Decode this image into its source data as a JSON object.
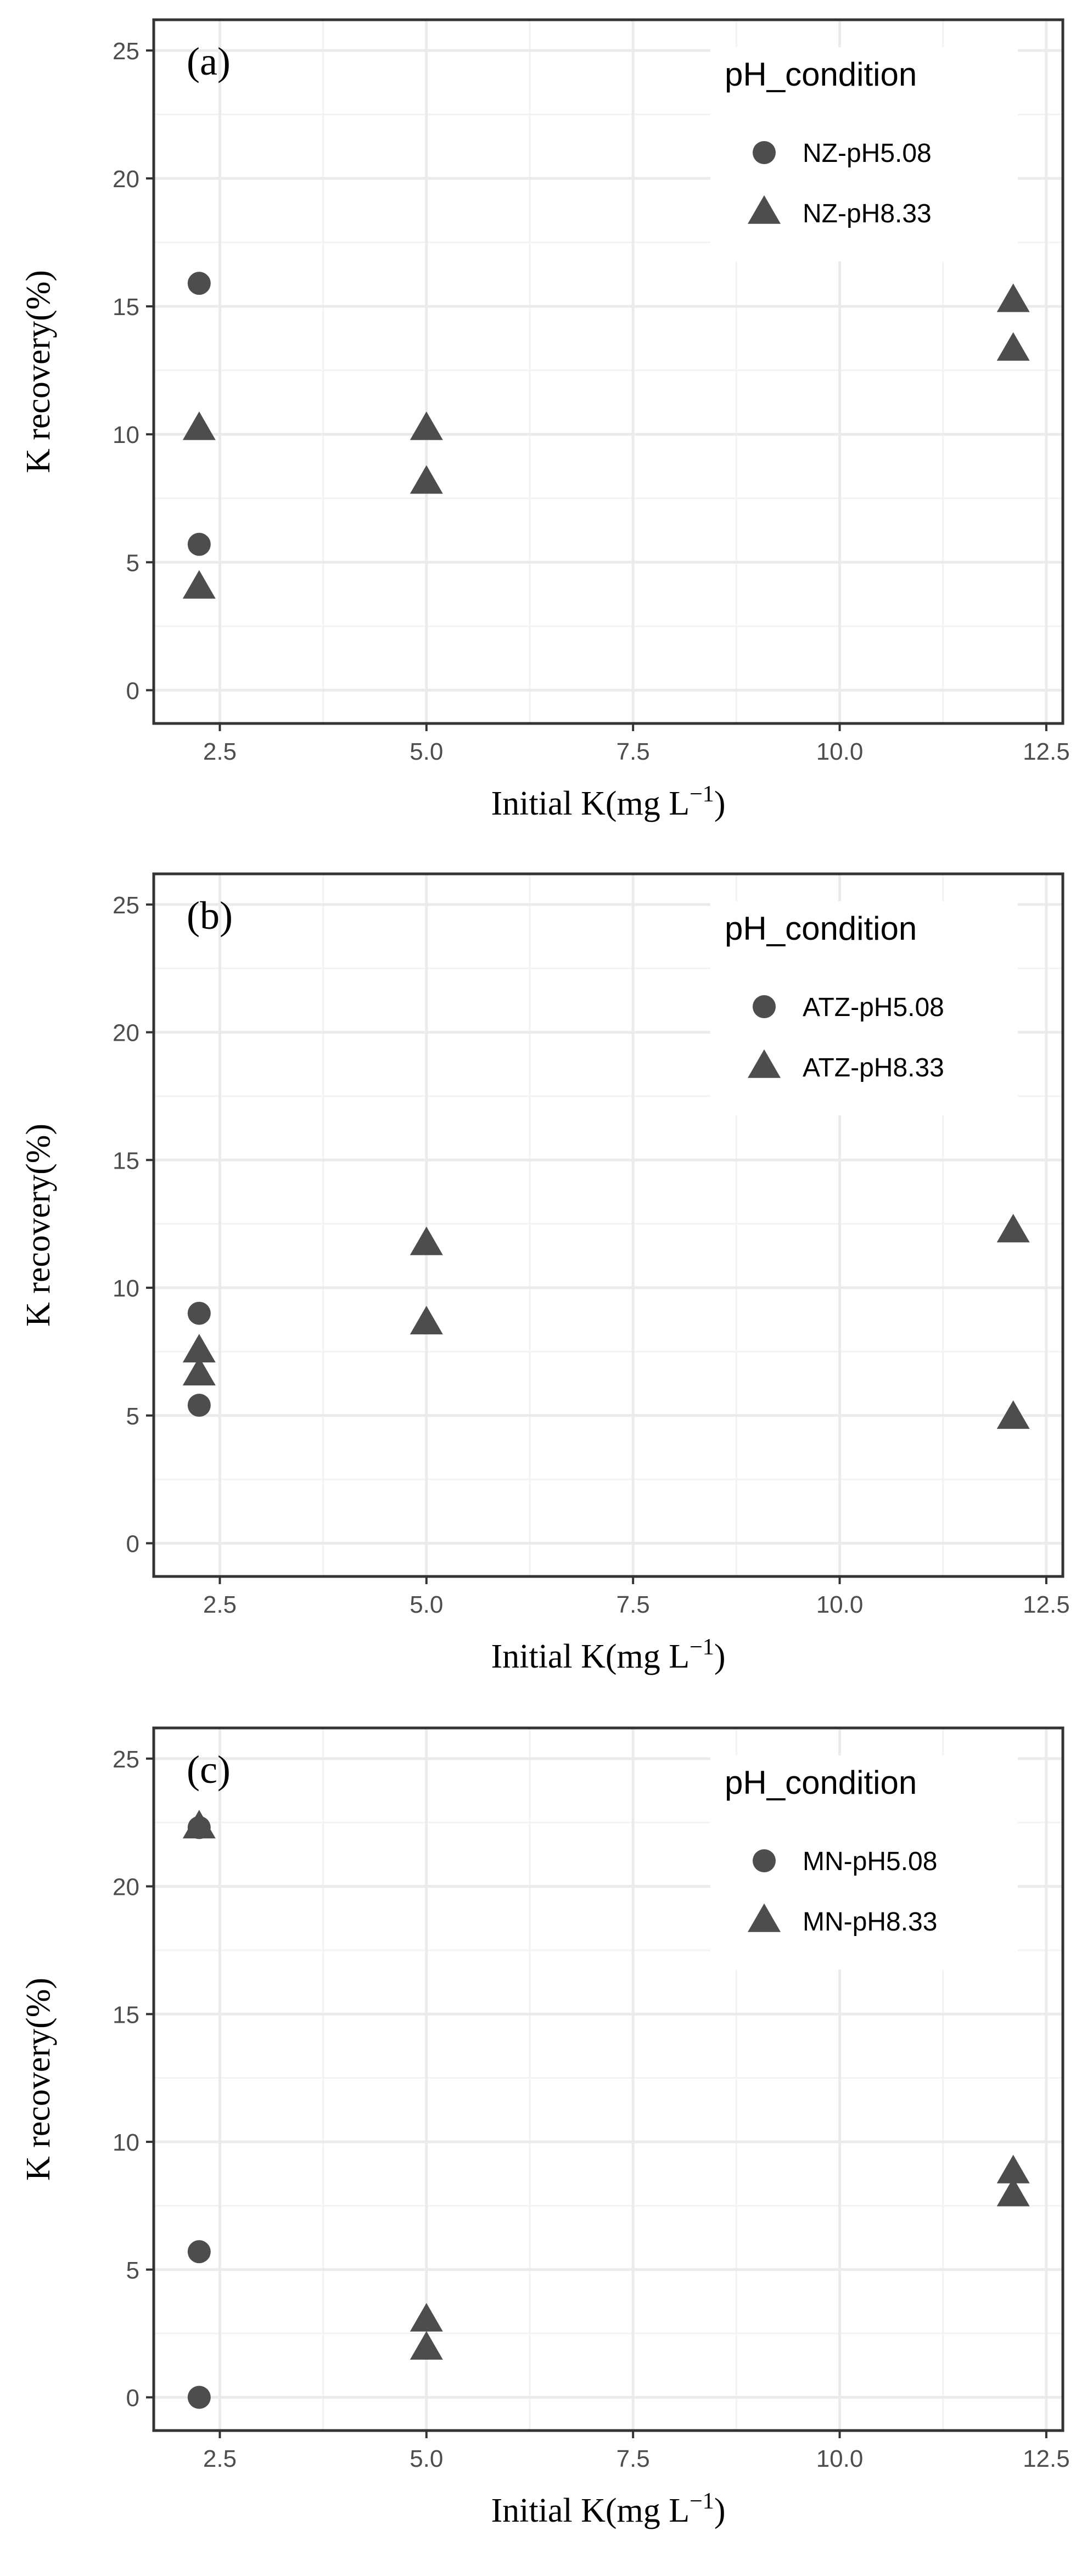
{
  "colors": {
    "background": "#ffffff",
    "panel_border": "#333333",
    "grid_major": "#ebebeb",
    "grid_minor": "#f3f3f3",
    "marker": "#4d4d4d",
    "tick_label": "#4d4d4d",
    "text": "#000000"
  },
  "chart_data": [
    {
      "type": "scatter",
      "panel_label": "(a)",
      "xlabel": "Initial K(mg L",
      "xlabel_sup": "−1",
      "xlabel_close": ")",
      "ylabel": "K recovery(%)",
      "xlim": [
        1.7,
        12.7
      ],
      "ylim": [
        -1.3,
        26.2
      ],
      "x_ticks": [
        2.5,
        5.0,
        7.5,
        10.0,
        12.5
      ],
      "x_tick_labels": [
        "2.5",
        "5.0",
        "7.5",
        "10.0",
        "12.5"
      ],
      "y_ticks": [
        0,
        5,
        10,
        15,
        20,
        25
      ],
      "y_tick_labels": [
        "0",
        "5",
        "10",
        "15",
        "20",
        "25"
      ],
      "legend_title": "pH_condition",
      "legend_position": "top-right",
      "series": [
        {
          "name": "NZ-pH5.08",
          "marker": "circle",
          "points": [
            [
              2.25,
              15.9
            ],
            [
              2.25,
              5.7
            ]
          ]
        },
        {
          "name": "NZ-pH8.33",
          "marker": "triangle",
          "points": [
            [
              2.25,
              10.2
            ],
            [
              2.25,
              4.0
            ],
            [
              5.0,
              10.2
            ],
            [
              5.0,
              8.1
            ],
            [
              12.1,
              15.2
            ],
            [
              12.1,
              13.3
            ]
          ]
        }
      ]
    },
    {
      "type": "scatter",
      "panel_label": "(b)",
      "xlabel": "Initial K(mg L",
      "xlabel_sup": "−1",
      "xlabel_close": ")",
      "ylabel": "K recovery(%)",
      "xlim": [
        1.7,
        12.7
      ],
      "ylim": [
        -1.3,
        26.2
      ],
      "x_ticks": [
        2.5,
        5.0,
        7.5,
        10.0,
        12.5
      ],
      "x_tick_labels": [
        "2.5",
        "5.0",
        "7.5",
        "10.0",
        "12.5"
      ],
      "y_ticks": [
        0,
        5,
        10,
        15,
        20,
        25
      ],
      "y_tick_labels": [
        "0",
        "5",
        "10",
        "15",
        "20",
        "25"
      ],
      "legend_title": "pH_condition",
      "legend_position": "top-right",
      "series": [
        {
          "name": "ATZ-pH5.08",
          "marker": "circle",
          "points": [
            [
              2.25,
              9.0
            ],
            [
              2.25,
              5.4
            ]
          ]
        },
        {
          "name": "ATZ-pH8.33",
          "marker": "triangle",
          "points": [
            [
              2.25,
              7.5
            ],
            [
              2.25,
              6.6
            ],
            [
              5.0,
              11.7
            ],
            [
              5.0,
              8.6
            ],
            [
              12.1,
              12.2
            ],
            [
              12.1,
              4.9
            ]
          ]
        }
      ]
    },
    {
      "type": "scatter",
      "panel_label": "(c)",
      "xlabel": "Initial K(mg L",
      "xlabel_sup": "−1",
      "xlabel_close": ")",
      "ylabel": "K recovery(%)",
      "xlim": [
        1.7,
        12.7
      ],
      "ylim": [
        -1.3,
        26.2
      ],
      "x_ticks": [
        2.5,
        5.0,
        7.5,
        10.0,
        12.5
      ],
      "x_tick_labels": [
        "2.5",
        "5.0",
        "7.5",
        "10.0",
        "12.5"
      ],
      "y_ticks": [
        0,
        5,
        10,
        15,
        20,
        25
      ],
      "y_tick_labels": [
        "0",
        "5",
        "10",
        "15",
        "20",
        "25"
      ],
      "legend_title": "pH_condition",
      "legend_position": "top-right",
      "series": [
        {
          "name": "MN-pH5.08",
          "marker": "circle",
          "points": [
            [
              2.25,
              22.3
            ],
            [
              2.25,
              5.7
            ],
            [
              2.25,
              0.0
            ]
          ]
        },
        {
          "name": "MN-pH8.33",
          "marker": "triangle",
          "points": [
            [
              2.25,
              22.3
            ],
            [
              5.0,
              3.0
            ],
            [
              5.0,
              1.9
            ],
            [
              12.1,
              8.8
            ],
            [
              12.1,
              7.9
            ]
          ]
        }
      ]
    }
  ]
}
